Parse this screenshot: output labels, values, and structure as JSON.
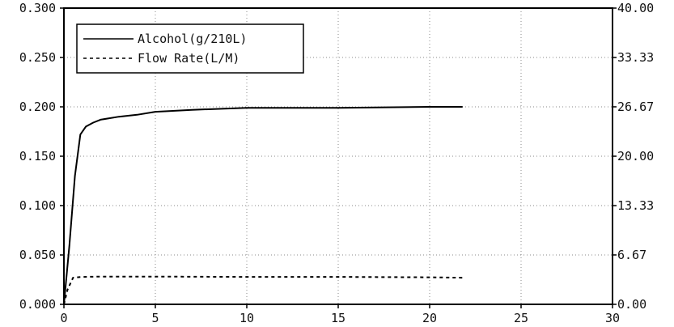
{
  "chart_data": {
    "type": "line",
    "title": "",
    "xlabel": "",
    "ylabel": "",
    "xlim": [
      0,
      30
    ],
    "ylim_left": [
      0,
      0.3
    ],
    "ylim_right": [
      0,
      40
    ],
    "grid": true,
    "legend_position": "top-left",
    "x_ticks": [
      "0",
      "5",
      "10",
      "15",
      "20",
      "25",
      "30"
    ],
    "y_ticks_left": [
      "0.000",
      "0.050",
      "0.100",
      "0.150",
      "0.200",
      "0.250",
      "0.300"
    ],
    "y_ticks_right": [
      "0.00",
      "6.67",
      "13.33",
      "20.00",
      "26.67",
      "33.33",
      "40.00"
    ],
    "series": [
      {
        "name": "Alcohol(g/210L)",
        "axis": "left",
        "style": "solid",
        "color": "#000000",
        "x": [
          0,
          0.3,
          0.6,
          0.9,
          1.2,
          1.6,
          2.0,
          3.0,
          4.0,
          5.0,
          7.0,
          10.0,
          15.0,
          20.0,
          21.8
        ],
        "y": [
          0.0,
          0.06,
          0.13,
          0.172,
          0.18,
          0.184,
          0.187,
          0.19,
          0.192,
          0.195,
          0.197,
          0.199,
          0.199,
          0.2,
          0.2
        ]
      },
      {
        "name": "Flow Rate(L/M)",
        "axis": "right",
        "style": "dashed",
        "color": "#000000",
        "x": [
          0,
          0.2,
          0.5,
          1.0,
          2.0,
          5.0,
          10.0,
          15.0,
          20.0,
          21.8
        ],
        "y": [
          0.0,
          2.0,
          3.6,
          3.7,
          3.75,
          3.75,
          3.7,
          3.7,
          3.65,
          3.6
        ]
      }
    ]
  }
}
